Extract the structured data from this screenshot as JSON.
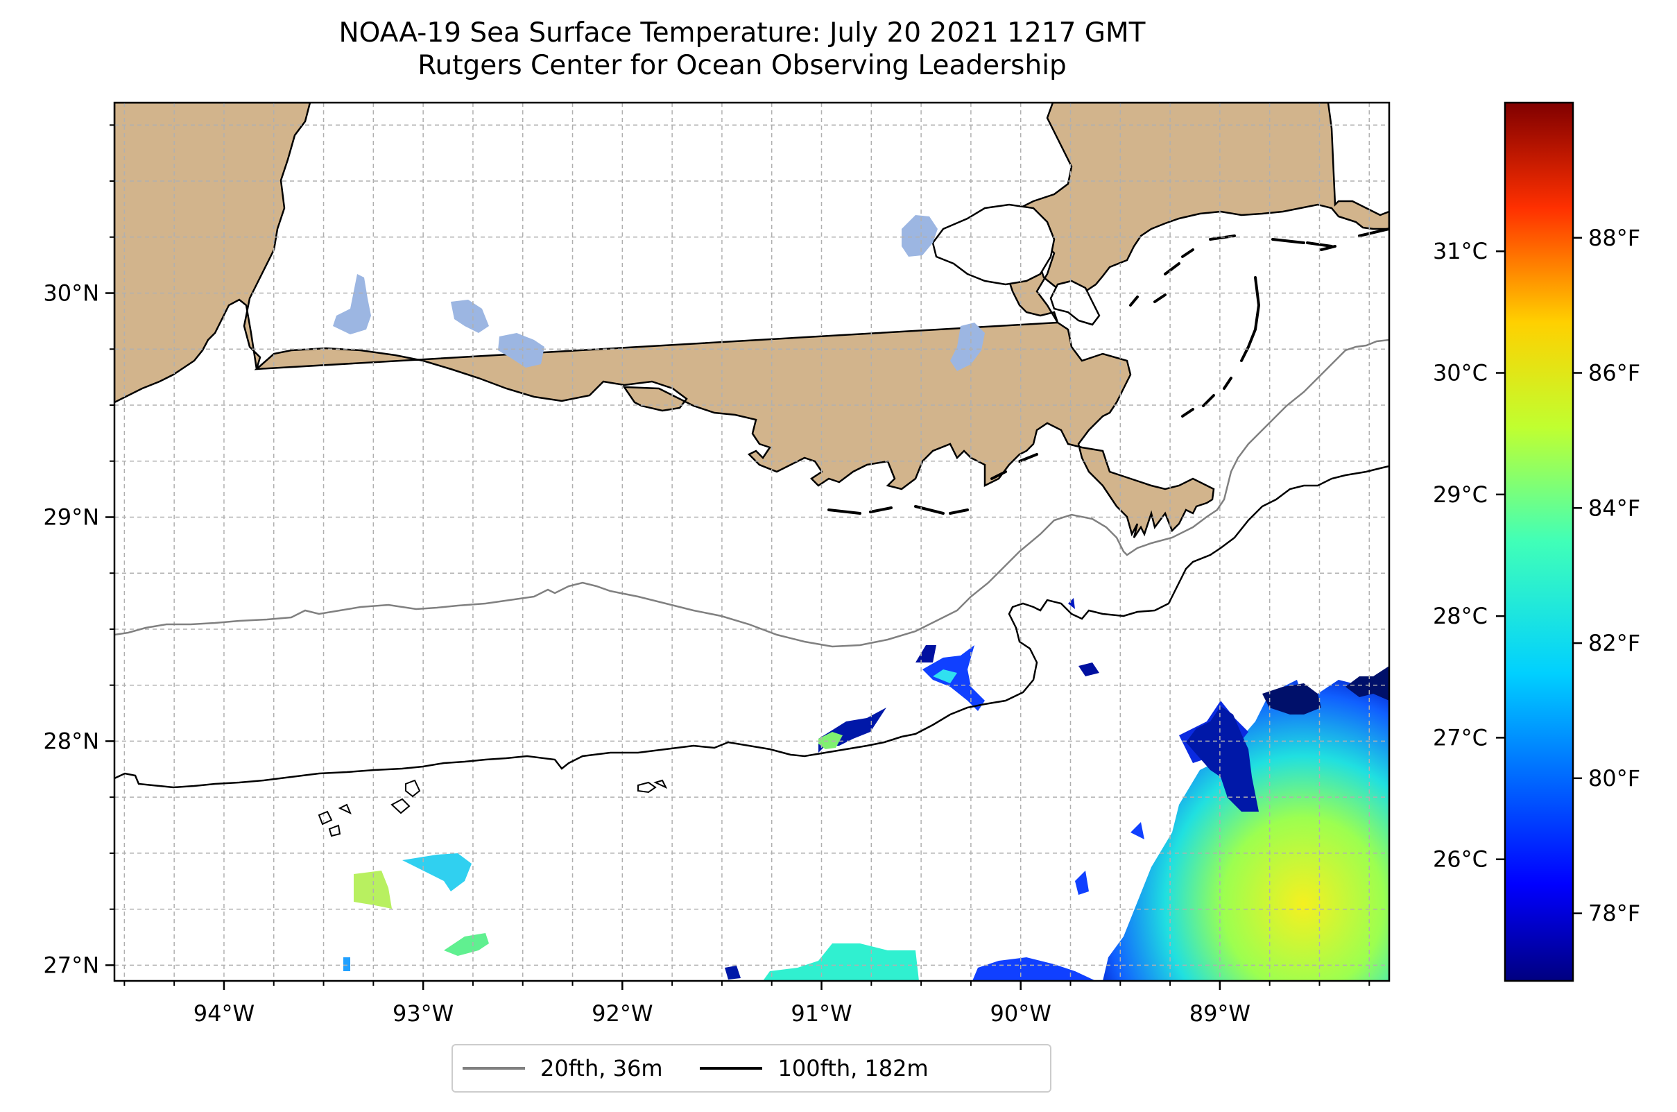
{
  "title": {
    "line1": "NOAA-19 Sea Surface Temperature: July 20 2021 1217 GMT",
    "line2": "Rutgers Center for Ocean Observing Leadership"
  },
  "map": {
    "lon_range": [
      -94.55,
      -88.15
    ],
    "lat_range": [
      26.93,
      30.85
    ],
    "x_ticks": [
      {
        "value": -94,
        "label": "94°W"
      },
      {
        "value": -93,
        "label": "93°W"
      },
      {
        "value": -92,
        "label": "92°W"
      },
      {
        "value": -91,
        "label": "91°W"
      },
      {
        "value": -90,
        "label": "90°W"
      },
      {
        "value": -89,
        "label": "89°W"
      }
    ],
    "y_ticks": [
      {
        "value": 27,
        "label": "27°N"
      },
      {
        "value": 28,
        "label": "28°N"
      },
      {
        "value": 29,
        "label": "29°N"
      },
      {
        "value": 30,
        "label": "30°N"
      }
    ],
    "gridlines": true,
    "grid_step_deg": 0.25,
    "land_color": "#d2b48c",
    "lake_color": "#9cb6e2",
    "ocean_color": "#ffffff"
  },
  "colorbar": {
    "colormap": "jet",
    "celsius_ticks": [
      {
        "value": 26,
        "label": "26°C"
      },
      {
        "value": 27,
        "label": "27°C"
      },
      {
        "value": 28,
        "label": "28°C"
      },
      {
        "value": 29,
        "label": "29°C"
      },
      {
        "value": 30,
        "label": "30°C"
      },
      {
        "value": 31,
        "label": "31°C"
      }
    ],
    "fahrenheit_ticks": [
      {
        "value": 78,
        "label": "78°F"
      },
      {
        "value": 80,
        "label": "80°F"
      },
      {
        "value": 82,
        "label": "82°F"
      },
      {
        "value": 84,
        "label": "84°F"
      },
      {
        "value": 86,
        "label": "86°F"
      },
      {
        "value": 88,
        "label": "88°F"
      }
    ],
    "fahrenheit_range": [
      77,
      90
    ]
  },
  "legend": {
    "items": [
      {
        "label": "20fth, 36m",
        "color": "#808080"
      },
      {
        "label": "100fth, 182m",
        "color": "#000000"
      }
    ]
  }
}
